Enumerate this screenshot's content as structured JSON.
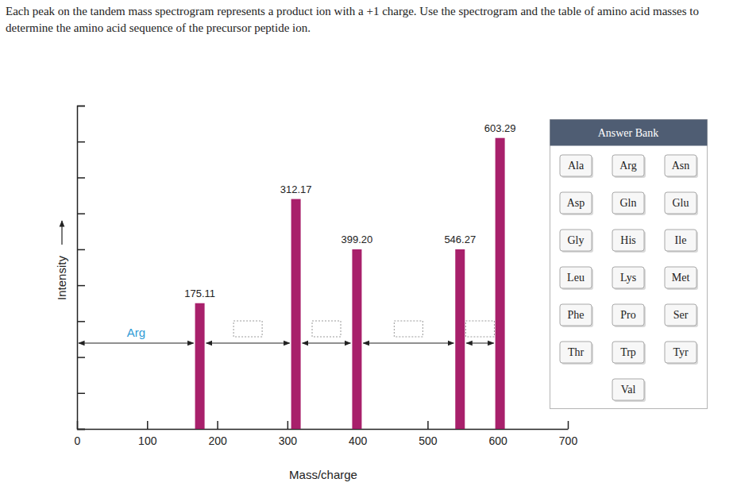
{
  "question": "Each peak on the tandem mass spectrogram represents a product ion with a +1 charge. Use the spectrogram and the table of amino acid masses to determine the amino acid sequence of the precursor peptide ion.",
  "chart_data": {
    "type": "bar",
    "x": [
      175.11,
      312.17,
      399.2,
      546.27,
      603.29
    ],
    "x_labels": [
      "175.11",
      "312.17",
      "399.20",
      "546.27",
      "603.29"
    ],
    "values": [
      3.5,
      6.4,
      5.0,
      5.0,
      8.1
    ],
    "color": "#a8206b",
    "x_label": "Mass/charge",
    "y_label": "Intensity",
    "xlim": [
      0,
      700
    ],
    "xticks": [
      0,
      100,
      200,
      300,
      400,
      500,
      600,
      700
    ],
    "ylim": [
      0,
      9
    ],
    "yticks": [
      0,
      1,
      2,
      3,
      4,
      5,
      6,
      7,
      8,
      9
    ],
    "tick_labels": "x",
    "annotations": [
      "Arg"
    ]
  },
  "answer_bank": {
    "title": "Answer Bank",
    "items": [
      "Ala",
      "Arg",
      "Asn",
      "Asp",
      "Gln",
      "Glu",
      "Gly",
      "His",
      "Ile",
      "Leu",
      "Lys",
      "Met",
      "Phe",
      "Pro",
      "Ser",
      "Thr",
      "Trp",
      "Tyr",
      "Val"
    ]
  }
}
